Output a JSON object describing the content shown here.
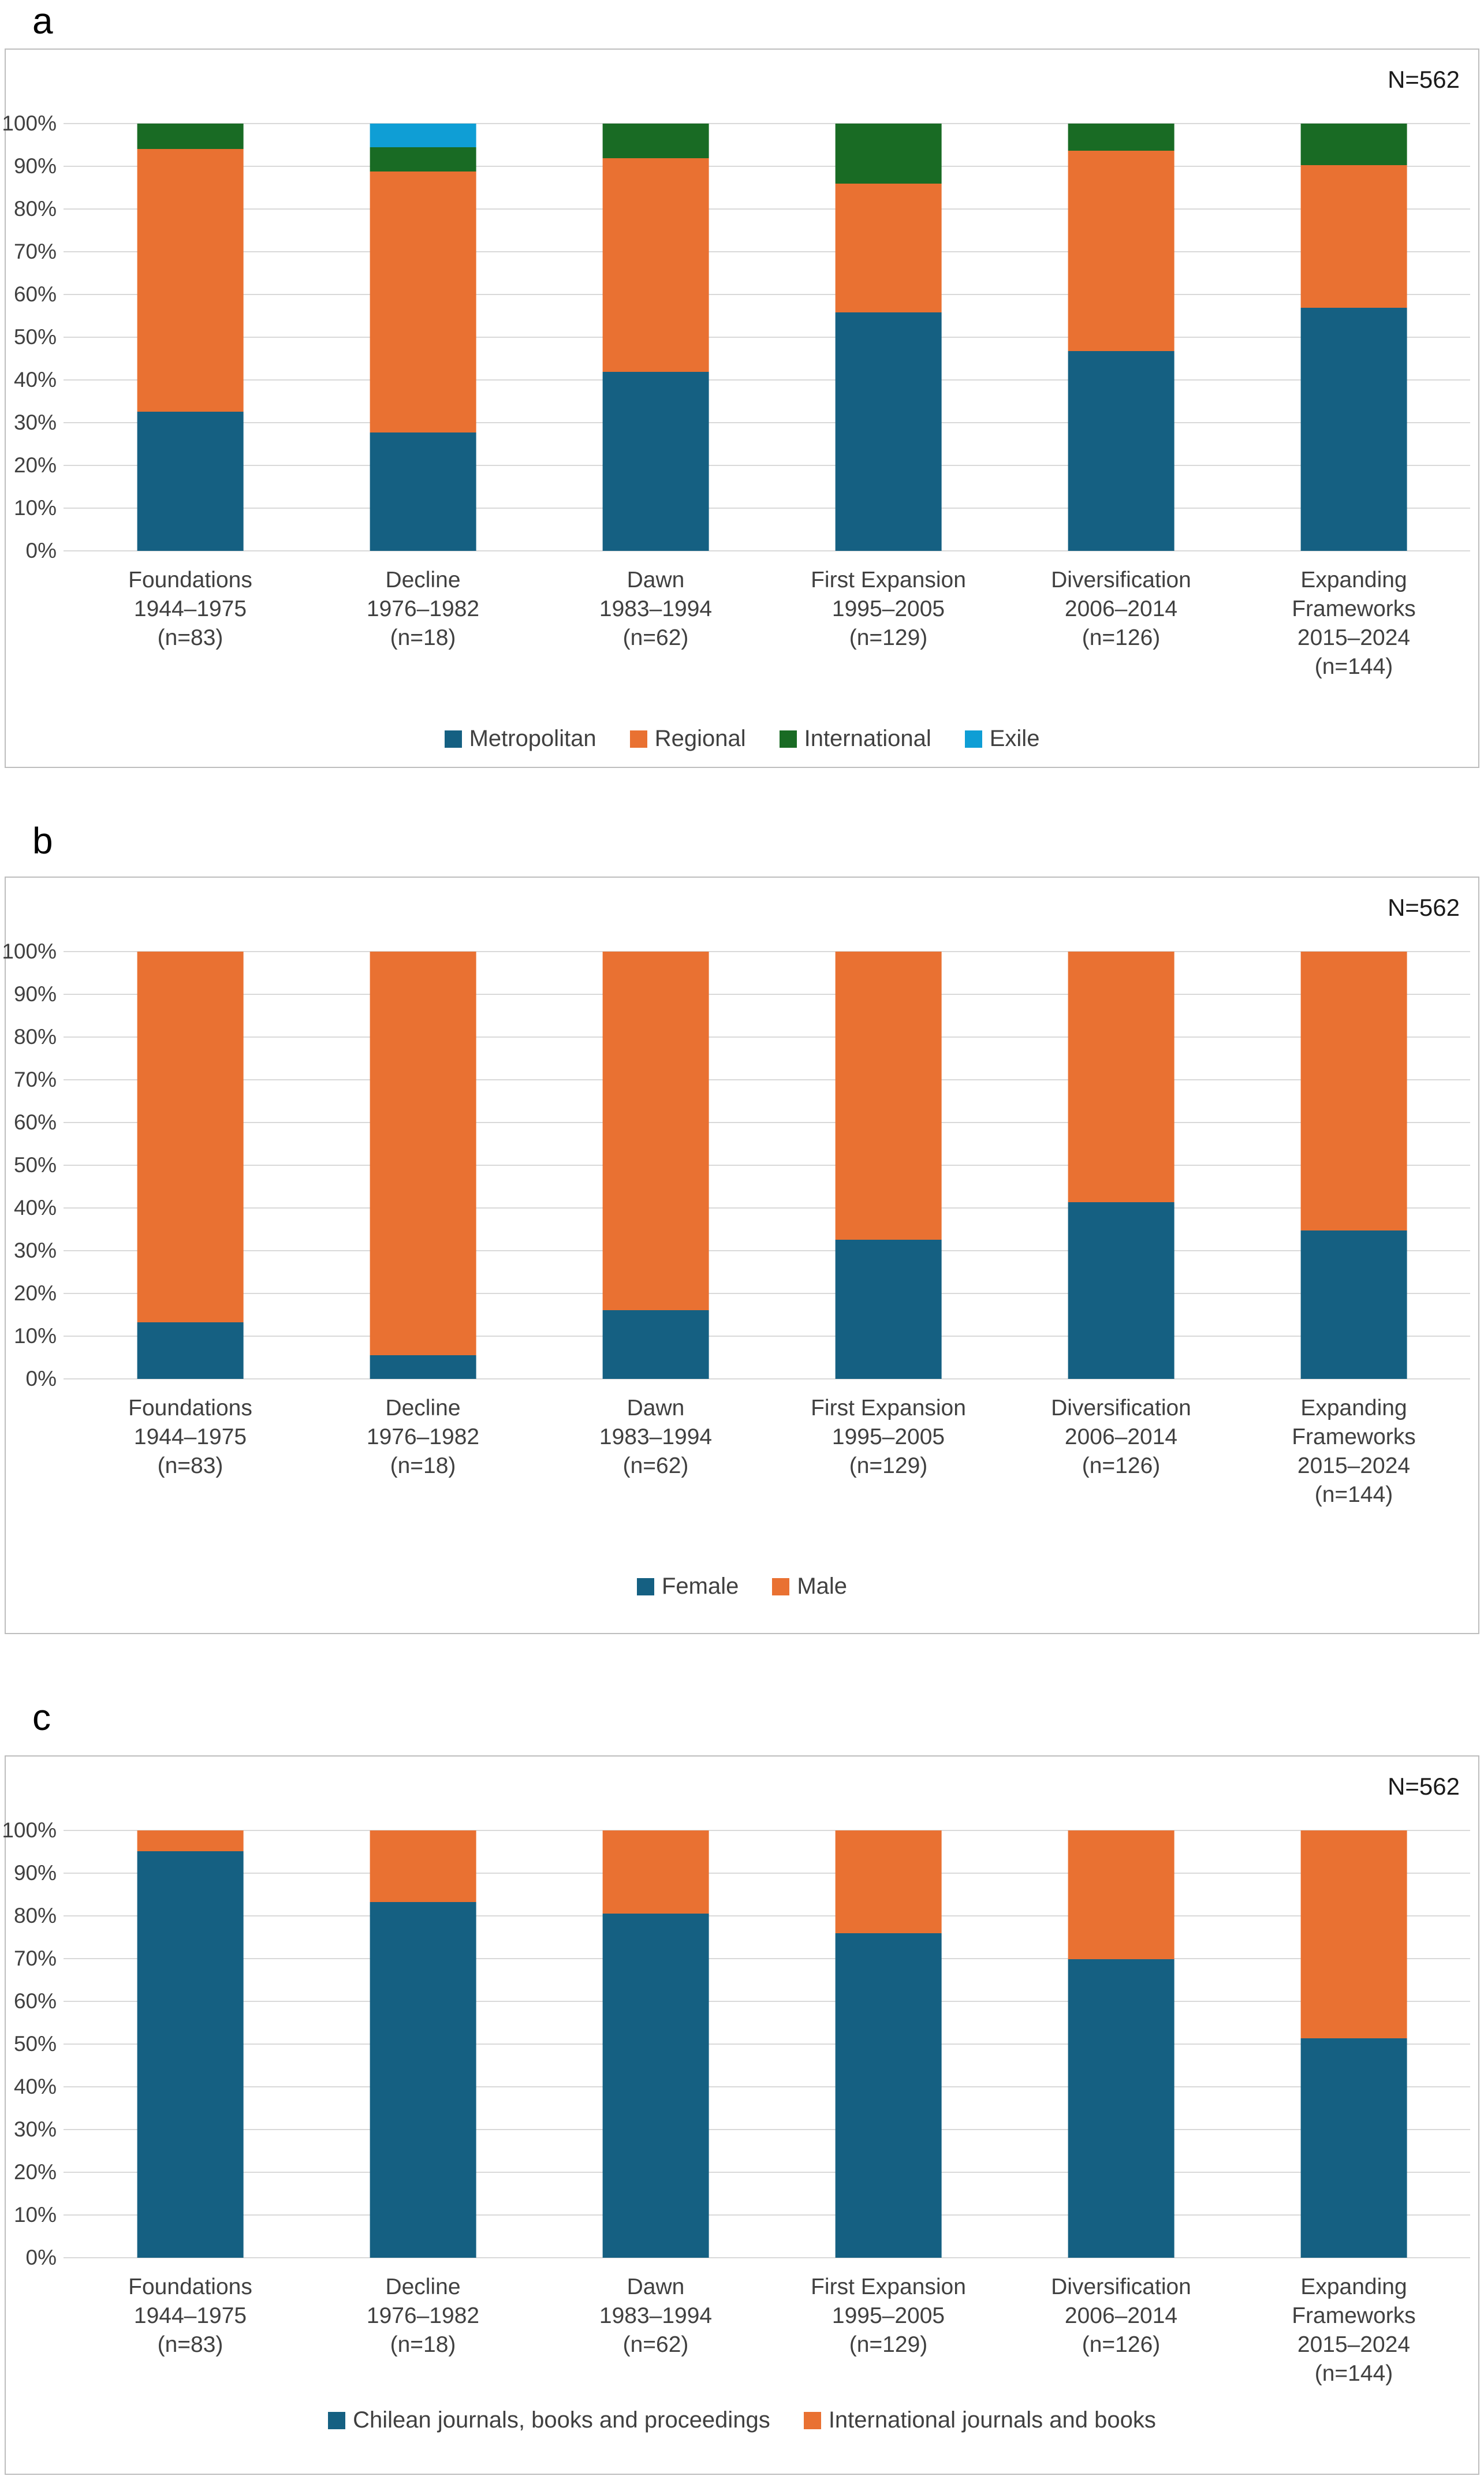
{
  "figure": {
    "panels": [
      {
        "letter": "a",
        "n_label": "N=562"
      },
      {
        "letter": "b",
        "n_label": "N=562"
      },
      {
        "letter": "c",
        "n_label": "N=562"
      }
    ],
    "colors": {
      "metropolitan_blue": "#156082",
      "regional_orange": "#E97132",
      "international_green": "#196B24",
      "exile_cyan": "#0F9ED5",
      "gridline": "#D9D9D9",
      "axis_text": "#404040",
      "panel_border": "#BDBDBD"
    }
  },
  "chart_data": [
    {
      "type": "bar",
      "stacked": true,
      "percent": true,
      "title": "",
      "annotation": "N=562",
      "xlabel": "",
      "ylabel": "",
      "ylim": [
        0,
        100
      ],
      "grid": true,
      "legend_position": "bottom",
      "y_ticks": [
        "0%",
        "10%",
        "20%",
        "30%",
        "40%",
        "50%",
        "60%",
        "70%",
        "80%",
        "90%",
        "100%"
      ],
      "categories": [
        [
          "Foundations",
          "1944–1975",
          "(n=83)"
        ],
        [
          "Decline",
          "1976–1982",
          "(n=18)"
        ],
        [
          "Dawn",
          "1983–1994",
          "(n=62)"
        ],
        [
          "First Expansion",
          "1995–2005",
          "(n=129)"
        ],
        [
          "Diversification",
          "2006–2014",
          "(n=126)"
        ],
        [
          "Expanding",
          "Frameworks",
          "2015–2024",
          "(n=144)"
        ]
      ],
      "series": [
        {
          "name": "Metropolitan",
          "color": "#156082",
          "values": [
            32.5,
            27.8,
            41.9,
            55.8,
            46.8,
            56.9
          ]
        },
        {
          "name": "Regional",
          "color": "#E97132",
          "values": [
            61.4,
            61.1,
            50.0,
            30.2,
            46.9,
            33.3
          ]
        },
        {
          "name": "International",
          "color": "#196B24",
          "values": [
            6.0,
            5.6,
            8.1,
            14.0,
            6.3,
            9.7
          ]
        },
        {
          "name": "Exile",
          "color": "#0F9ED5",
          "values": [
            0,
            5.6,
            0,
            0,
            0,
            0
          ]
        }
      ]
    },
    {
      "type": "bar",
      "stacked": true,
      "percent": true,
      "title": "",
      "annotation": "N=562",
      "xlabel": "",
      "ylabel": "",
      "ylim": [
        0,
        100
      ],
      "grid": true,
      "legend_position": "bottom",
      "y_ticks": [
        "0%",
        "10%",
        "20%",
        "30%",
        "40%",
        "50%",
        "60%",
        "70%",
        "80%",
        "90%",
        "100%"
      ],
      "categories": [
        [
          "Foundations",
          "1944–1975",
          "(n=83)"
        ],
        [
          "Decline",
          "1976–1982",
          "(n=18)"
        ],
        [
          "Dawn",
          "1983–1994",
          "(n=62)"
        ],
        [
          "First Expansion",
          "1995–2005",
          "(n=129)"
        ],
        [
          "Diversification",
          "2006–2014",
          "(n=126)"
        ],
        [
          "Expanding",
          "Frameworks",
          "2015–2024",
          "(n=144)"
        ]
      ],
      "series": [
        {
          "name": "Female",
          "color": "#156082",
          "values": [
            13.3,
            5.6,
            16.1,
            32.6,
            41.3,
            34.7
          ]
        },
        {
          "name": "Male",
          "color": "#E97132",
          "values": [
            86.7,
            94.4,
            83.9,
            67.4,
            58.7,
            65.3
          ]
        }
      ]
    },
    {
      "type": "bar",
      "stacked": true,
      "percent": true,
      "title": "",
      "annotation": "N=562",
      "xlabel": "",
      "ylabel": "",
      "ylim": [
        0,
        100
      ],
      "grid": true,
      "legend_position": "bottom",
      "y_ticks": [
        "0%",
        "10%",
        "20%",
        "30%",
        "40%",
        "50%",
        "60%",
        "70%",
        "80%",
        "90%",
        "100%"
      ],
      "categories": [
        [
          "Foundations",
          "1944–1975",
          "(n=83)"
        ],
        [
          "Decline",
          "1976–1982",
          "(n=18)"
        ],
        [
          "Dawn",
          "1983–1994",
          "(n=62)"
        ],
        [
          "First Expansion",
          "1995–2005",
          "(n=129)"
        ],
        [
          "Diversification",
          "2006–2014",
          "(n=126)"
        ],
        [
          "Expanding",
          "Frameworks",
          "2015–2024",
          "(n=144)"
        ]
      ],
      "series": [
        {
          "name": "Chilean journals, books and proceedings",
          "color": "#156082",
          "values": [
            95.2,
            83.3,
            80.6,
            76.0,
            69.8,
            51.4
          ]
        },
        {
          "name": "International journals and books",
          "color": "#E97132",
          "values": [
            4.8,
            16.7,
            19.4,
            24.0,
            30.2,
            48.6
          ]
        }
      ]
    }
  ]
}
